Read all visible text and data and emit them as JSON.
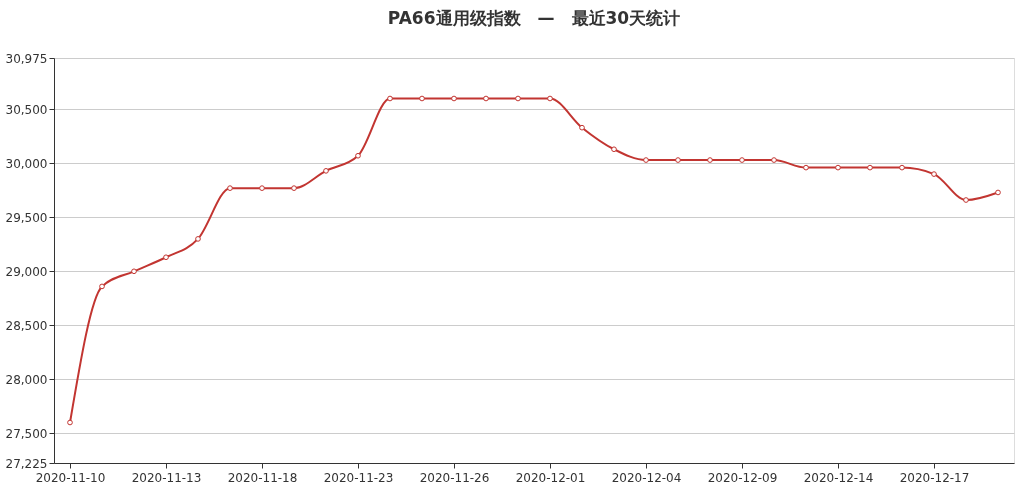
{
  "chart_data": {
    "type": "line",
    "title": "PA66通用级指数　—　最近30天统计",
    "categories": [
      "2020-11-10",
      null,
      null,
      "2020-11-13",
      null,
      null,
      "2020-11-18",
      null,
      null,
      "2020-11-23",
      null,
      null,
      "2020-11-26",
      null,
      null,
      "2020-12-01",
      null,
      null,
      "2020-12-04",
      null,
      null,
      "2020-12-09",
      null,
      null,
      "2020-12-14",
      null,
      null,
      "2020-12-17",
      null,
      null
    ],
    "series": [
      {
        "color": "#c23531",
        "values": [
          27600,
          28860,
          29000,
          29130,
          29300,
          29770,
          29770,
          29770,
          29930,
          30070,
          30600,
          30600,
          30600,
          30600,
          30600,
          30600,
          30330,
          30130,
          30030,
          30030,
          30030,
          30030,
          30030,
          29960,
          29960,
          29960,
          29960,
          29900,
          29660,
          29730
        ]
      }
    ],
    "ylim": [
      27225,
      30975
    ],
    "yticks": [
      {
        "value": 27225,
        "label": "27,225"
      },
      {
        "value": 27500,
        "label": "27,500"
      },
      {
        "value": 28000,
        "label": "28,000"
      },
      {
        "value": 28500,
        "label": "28,500"
      },
      {
        "value": 29000,
        "label": "29,000"
      },
      {
        "value": 29500,
        "label": "29,500"
      },
      {
        "value": 30000,
        "label": "30,000"
      },
      {
        "value": 30500,
        "label": "30,500"
      },
      {
        "value": 30975,
        "label": "30,975"
      }
    ],
    "grid": "y",
    "marker": "circle",
    "line_style": "solid"
  }
}
